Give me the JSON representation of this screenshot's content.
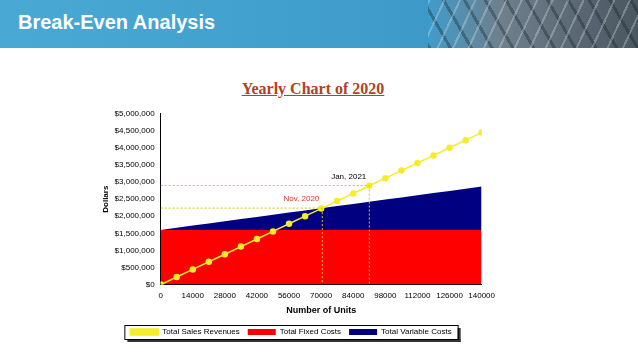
{
  "header": {
    "title": "Break-Even Analysis"
  },
  "chart_data": {
    "type": "line",
    "title": "Yearly Chart of 2020",
    "x_label": "Number of Units",
    "y_label": "Dollars",
    "x": [
      0,
      7000,
      14000,
      21000,
      28000,
      35000,
      42000,
      49000,
      56000,
      63000,
      70000,
      77000,
      84000,
      91000,
      98000,
      105000,
      112000,
      119000,
      126000,
      133000,
      140000
    ],
    "series": [
      {
        "name": "Total Fixed Costs",
        "type": "area",
        "color": "#ff0000",
        "marker": "none",
        "values": [
          1600000,
          1600000,
          1600000,
          1600000,
          1600000,
          1600000,
          1600000,
          1600000,
          1600000,
          1600000,
          1600000,
          1600000,
          1600000,
          1600000,
          1600000,
          1600000,
          1600000,
          1600000,
          1600000,
          1600000,
          1600000
        ]
      },
      {
        "name": "Total Variable Costs",
        "type": "area",
        "color": "#000080",
        "marker": "none",
        "values": [
          0,
          63500,
          127000,
          190500,
          254000,
          317500,
          381000,
          444500,
          508000,
          571500,
          635000,
          698500,
          762000,
          825500,
          889000,
          952500,
          1016000,
          1079500,
          1143000,
          1206500,
          1270000
        ]
      },
      {
        "name": "Total Sales Revenues",
        "type": "line",
        "color": "#f5ec2a",
        "marker": "circle",
        "values": [
          0,
          222500,
          445000,
          667500,
          890000,
          1112500,
          1335000,
          1557500,
          1780000,
          2002500,
          2225000,
          2447500,
          2670000,
          2892500,
          3115000,
          3337500,
          3560000,
          3782500,
          4005000,
          4227500,
          4450000
        ]
      }
    ],
    "stacked": true,
    "xlim": [
      0,
      140000
    ],
    "xticks": [
      0,
      14000,
      28000,
      42000,
      56000,
      70000,
      84000,
      98000,
      112000,
      126000,
      140000
    ],
    "ylim": [
      0,
      5000000
    ],
    "yticks": [
      {
        "value": 0,
        "label": "$0"
      },
      {
        "value": 500000,
        "label": "$500,000"
      },
      {
        "value": 1000000,
        "label": "$1,000,000"
      },
      {
        "value": 1500000,
        "label": "$1,500,000"
      },
      {
        "value": 2000000,
        "label": "$2,000,000"
      },
      {
        "value": 2500000,
        "label": "$2,500,000"
      },
      {
        "value": 3000000,
        "label": "$3,000,000"
      },
      {
        "value": 3500000,
        "label": "$3,500,000"
      },
      {
        "value": 4000000,
        "label": "$4,000,000"
      },
      {
        "value": 4500000,
        "label": "$4,500,000"
      },
      {
        "value": 5000000,
        "label": "$5,000,000"
      }
    ],
    "grid": false,
    "legend": "bottom",
    "annotations": [
      {
        "text": "Nov, 2020",
        "x": 70500,
        "y": 2240000,
        "color": "#e0302a"
      },
      {
        "text": "Jan, 2021",
        "x": 91000,
        "y": 2900000,
        "color": "#000000"
      }
    ]
  }
}
